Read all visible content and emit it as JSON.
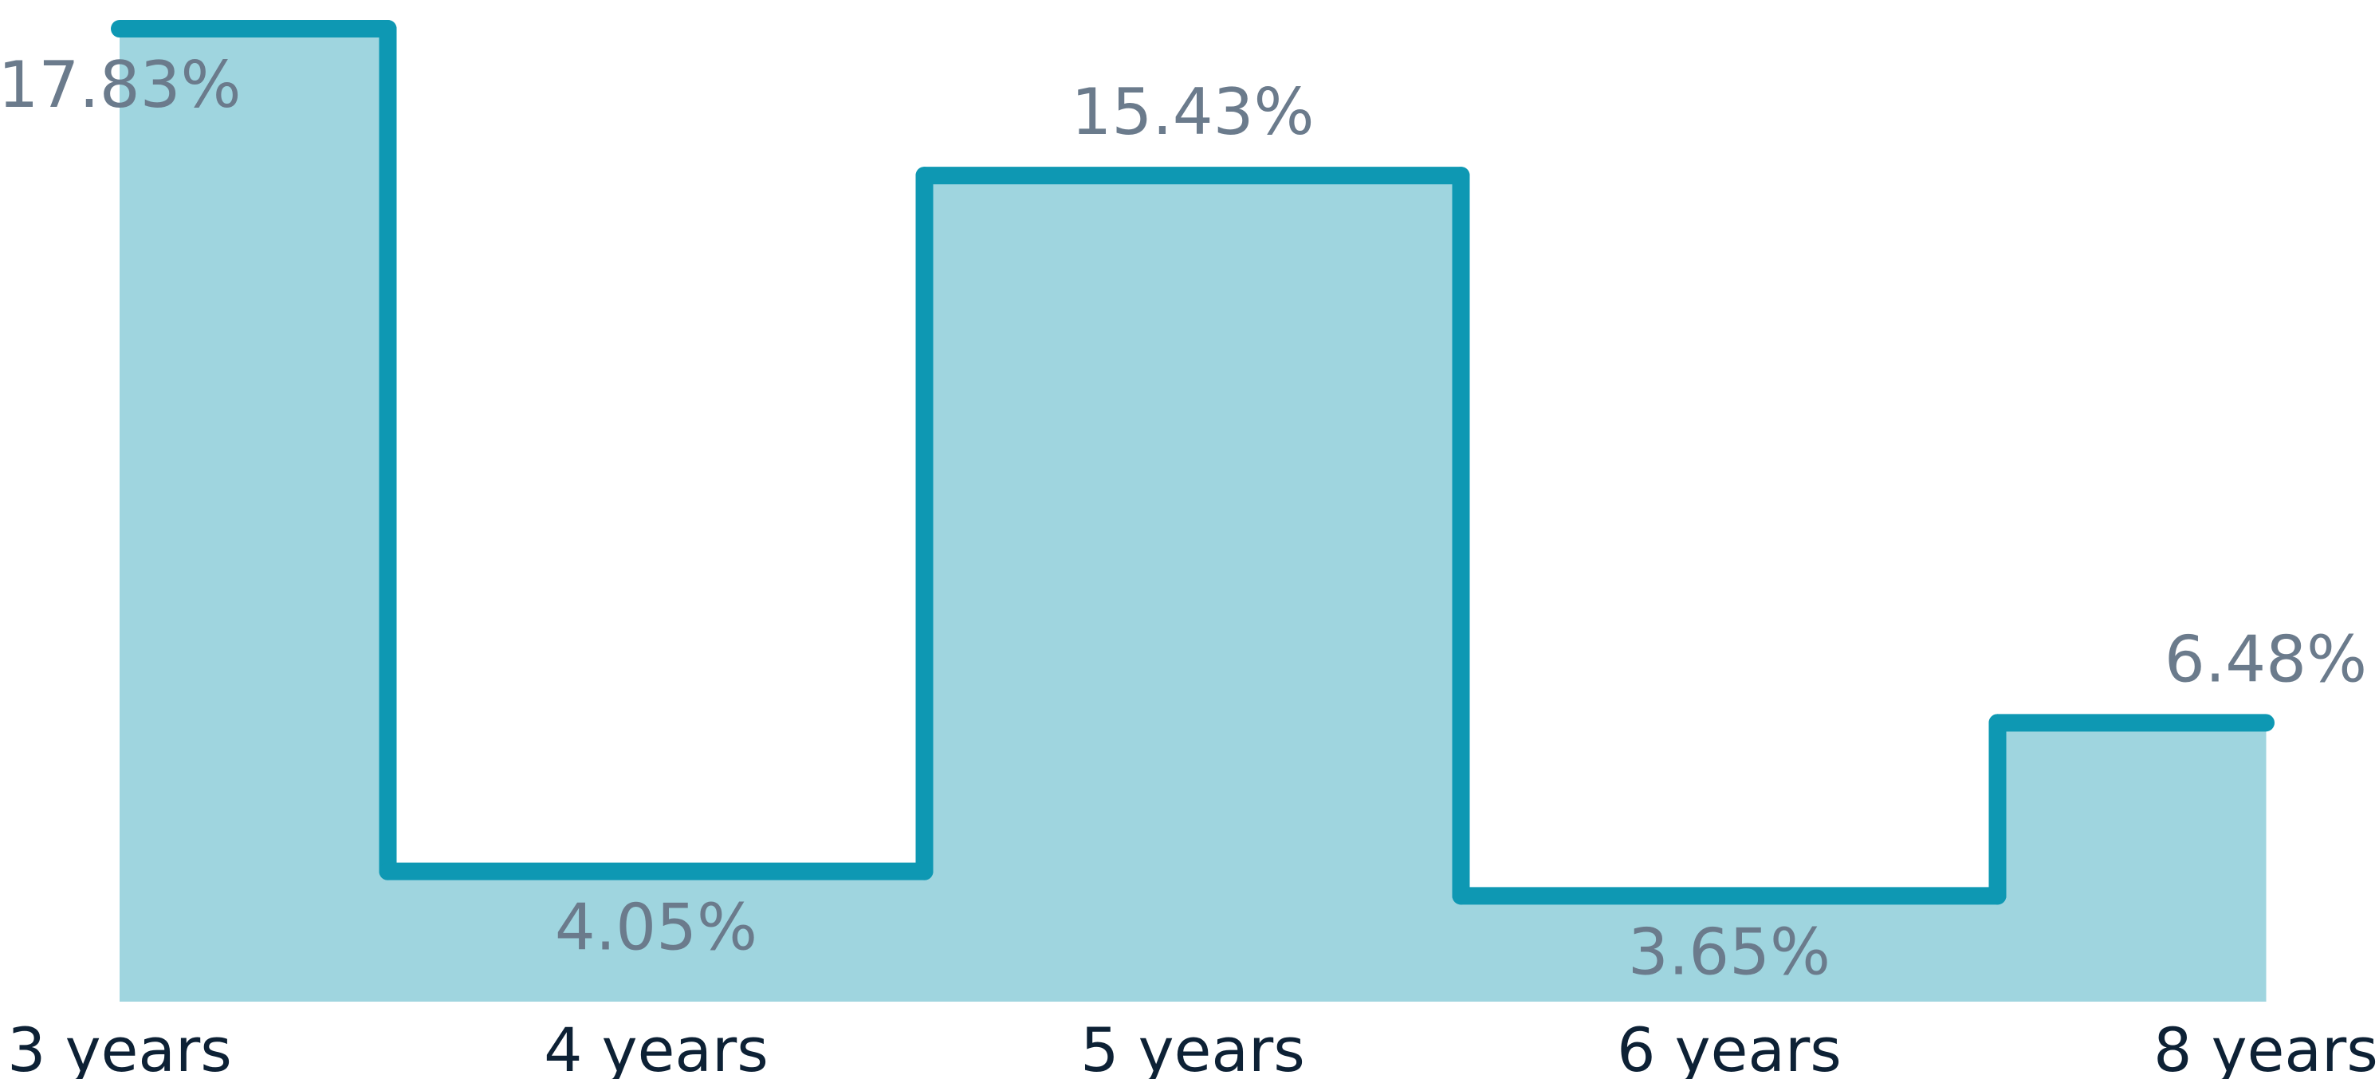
{
  "chart_data": {
    "type": "step",
    "categories": [
      "3 years",
      "4 years",
      "5 years",
      "6 years",
      "8 years"
    ],
    "values": [
      17.83,
      4.05,
      15.43,
      3.65,
      6.48
    ],
    "value_labels": [
      "17.83%",
      "4.05%",
      "15.43%",
      "3.65%",
      "6.48%"
    ],
    "color": "#0e98b3",
    "fill_color": "#9fd5df",
    "ylim": [
      1.92,
      18.3
    ]
  }
}
